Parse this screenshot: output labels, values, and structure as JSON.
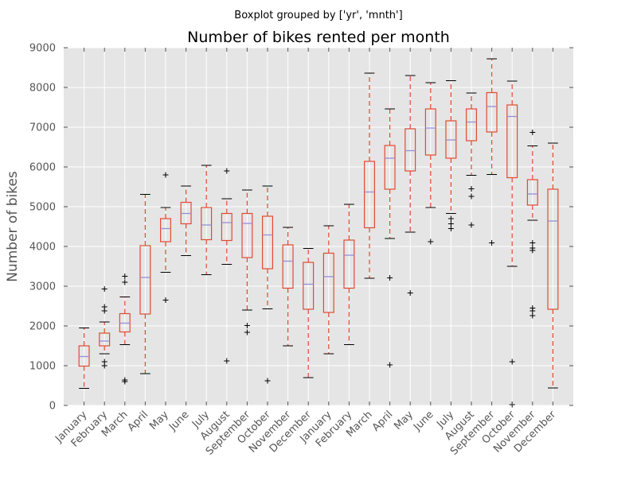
{
  "chart_data": {
    "type": "boxplot",
    "suptitle": "Boxplot grouped by ['yr', 'mnth']",
    "title": "Number of bikes rented per month",
    "xlabel": "",
    "ylabel": "Number of bikes",
    "ylim": [
      0,
      9000
    ],
    "yticks": [
      0,
      1000,
      2000,
      3000,
      4000,
      5000,
      6000,
      7000,
      8000,
      9000
    ],
    "grid": true,
    "colors": {
      "background": "#e5e5e5",
      "box": "#e24a33",
      "median": "#988ed5",
      "flier": "#000000"
    },
    "categories": [
      "January",
      "February",
      "March",
      "April",
      "May",
      "June",
      "July",
      "August",
      "September",
      "October",
      "November",
      "December",
      "January",
      "February",
      "March",
      "April",
      "May",
      "June",
      "July",
      "August",
      "September",
      "October",
      "November",
      "December"
    ],
    "boxes": [
      {
        "whislo": 430,
        "q1": 990,
        "med": 1230,
        "q3": 1500,
        "whishi": 1950,
        "fliers": []
      },
      {
        "whislo": 1300,
        "q1": 1500,
        "med": 1620,
        "q3": 1820,
        "whishi": 2100,
        "fliers": [
          1000,
          1100,
          2380,
          2480,
          2930
        ]
      },
      {
        "whislo": 1530,
        "q1": 1850,
        "med": 2070,
        "q3": 2310,
        "whishi": 2730,
        "fliers": [
          600,
          640,
          3100,
          3250
        ]
      },
      {
        "whislo": 800,
        "q1": 2300,
        "med": 3220,
        "q3": 4020,
        "whishi": 5310,
        "fliers": []
      },
      {
        "whislo": 3350,
        "q1": 4120,
        "med": 4450,
        "q3": 4700,
        "whishi": 4980,
        "fliers": [
          2650,
          5800
        ]
      },
      {
        "whislo": 3770,
        "q1": 4570,
        "med": 4830,
        "q3": 5110,
        "whishi": 5520,
        "fliers": []
      },
      {
        "whislo": 3290,
        "q1": 4170,
        "med": 4540,
        "q3": 4980,
        "whishi": 6040,
        "fliers": []
      },
      {
        "whislo": 3550,
        "q1": 4150,
        "med": 4600,
        "q3": 4830,
        "whishi": 5200,
        "fliers": [
          1120,
          5900
        ]
      },
      {
        "whislo": 2400,
        "q1": 3720,
        "med": 4580,
        "q3": 4830,
        "whishi": 5420,
        "fliers": [
          1840,
          2010
        ]
      },
      {
        "whislo": 2430,
        "q1": 3440,
        "med": 4290,
        "q3": 4760,
        "whishi": 5520,
        "fliers": [
          620
        ]
      },
      {
        "whislo": 1500,
        "q1": 2950,
        "med": 3630,
        "q3": 4040,
        "whishi": 4480,
        "fliers": []
      },
      {
        "whislo": 700,
        "q1": 2420,
        "med": 3050,
        "q3": 3600,
        "whishi": 3950,
        "fliers": []
      },
      {
        "whislo": 1300,
        "q1": 2340,
        "med": 3240,
        "q3": 3830,
        "whishi": 4520,
        "fliers": []
      },
      {
        "whislo": 1530,
        "q1": 2950,
        "med": 3780,
        "q3": 4160,
        "whishi": 5060,
        "fliers": []
      },
      {
        "whislo": 3200,
        "q1": 4470,
        "med": 5370,
        "q3": 6140,
        "whishi": 8360,
        "fliers": []
      },
      {
        "whislo": 4200,
        "q1": 5440,
        "med": 6220,
        "q3": 6540,
        "whishi": 7460,
        "fliers": [
          1020,
          3210
        ]
      },
      {
        "whislo": 4360,
        "q1": 5900,
        "med": 6410,
        "q3": 6960,
        "whishi": 8300,
        "fliers": [
          2830
        ]
      },
      {
        "whislo": 4980,
        "q1": 6300,
        "med": 6980,
        "q3": 7460,
        "whishi": 8120,
        "fliers": [
          4120
        ]
      },
      {
        "whislo": 4830,
        "q1": 6220,
        "med": 6680,
        "q3": 7160,
        "whishi": 8170,
        "fliers": [
          4450,
          4570,
          4700
        ]
      },
      {
        "whislo": 5790,
        "q1": 6660,
        "med": 7130,
        "q3": 7460,
        "whishi": 7860,
        "fliers": [
          4540,
          5260,
          5450
        ]
      },
      {
        "whislo": 5810,
        "q1": 6880,
        "med": 7520,
        "q3": 7870,
        "whishi": 8720,
        "fliers": [
          4090
        ]
      },
      {
        "whislo": 3500,
        "q1": 5730,
        "med": 7270,
        "q3": 7560,
        "whishi": 8160,
        "fliers": [
          20,
          1100
        ]
      },
      {
        "whislo": 4660,
        "q1": 5040,
        "med": 5320,
        "q3": 5680,
        "whishi": 6530,
        "fliers": [
          2260,
          2380,
          2450,
          3900,
          3960,
          4090,
          6870
        ]
      },
      {
        "whislo": 440,
        "q1": 2420,
        "med": 4640,
        "q3": 5440,
        "whishi": 6600,
        "fliers": []
      }
    ]
  }
}
